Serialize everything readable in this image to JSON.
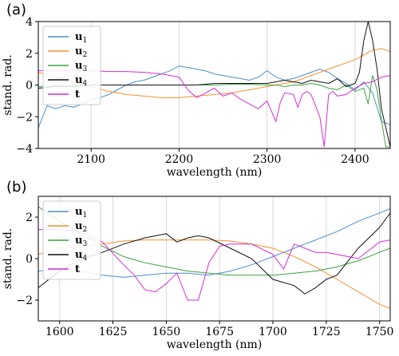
{
  "chart_data": [
    {
      "type": "line",
      "panel_label": "(a)",
      "xlabel": "wavelength (nm)",
      "ylabel": "stand. rad.",
      "xlim": [
        2040,
        2440
      ],
      "ylim": [
        -4,
        4
      ],
      "xticks": [
        2100,
        2200,
        2300,
        2400
      ],
      "yticks": [
        -4,
        -2,
        0,
        2,
        4
      ],
      "grid": true,
      "legend_position": "upper-left",
      "series": [
        {
          "name": "u",
          "sub": "1",
          "color": "#4c8fc7",
          "x": [
            2040,
            2050,
            2060,
            2070,
            2080,
            2090,
            2100,
            2110,
            2120,
            2130,
            2140,
            2150,
            2160,
            2170,
            2180,
            2190,
            2200,
            2210,
            2220,
            2230,
            2240,
            2250,
            2260,
            2270,
            2280,
            2290,
            2300,
            2310,
            2320,
            2330,
            2340,
            2350,
            2360,
            2370,
            2380,
            2390,
            2400,
            2410,
            2420,
            2430,
            2440
          ],
          "y": [
            -2.7,
            -1.3,
            -1.5,
            -1.3,
            -1.4,
            -1.2,
            -0.9,
            -0.8,
            -0.6,
            -0.3,
            0.0,
            0.2,
            0.3,
            0.5,
            0.7,
            0.9,
            1.2,
            1.1,
            1.0,
            0.9,
            0.7,
            0.6,
            0.5,
            0.4,
            0.3,
            0.5,
            0.9,
            0.5,
            0.3,
            0.4,
            0.6,
            0.8,
            1.0,
            0.8,
            0.4,
            0.1,
            -0.3,
            0.2,
            -0.5,
            -2.3,
            -2.5
          ]
        },
        {
          "name": "u",
          "sub": "2",
          "color": "#f5902d",
          "x": [
            2040,
            2060,
            2080,
            2100,
            2120,
            2140,
            2160,
            2180,
            2200,
            2220,
            2240,
            2260,
            2280,
            2300,
            2310,
            2320,
            2330,
            2340,
            2350,
            2360,
            2370,
            2380,
            2390,
            2400,
            2410,
            2420,
            2430,
            2440
          ],
          "y": [
            0.8,
            0.5,
            0.2,
            -0.1,
            -0.4,
            -0.6,
            -0.7,
            -0.8,
            -0.8,
            -0.7,
            -0.6,
            -0.5,
            -0.3,
            -0.1,
            0.0,
            0.1,
            0.2,
            0.4,
            0.6,
            0.8,
            1.0,
            1.2,
            1.4,
            1.6,
            1.9,
            2.2,
            2.3,
            2.1
          ]
        },
        {
          "name": "u",
          "sub": "3",
          "color": "#3ca141",
          "x": [
            2040,
            2060,
            2080,
            2100,
            2120,
            2140,
            2160,
            2180,
            2200,
            2220,
            2240,
            2260,
            2280,
            2300,
            2310,
            2320,
            2330,
            2340,
            2350,
            2360,
            2370,
            2380,
            2390,
            2400,
            2410,
            2415,
            2420,
            2425,
            2430,
            2435,
            2440
          ],
          "y": [
            -0.1,
            -0.05,
            0.0,
            0.0,
            0.0,
            0.0,
            0.0,
            0.0,
            0.0,
            0.0,
            0.0,
            0.05,
            0.05,
            0.0,
            0.0,
            -0.1,
            0.0,
            0.0,
            0.1,
            0.0,
            -0.2,
            -0.3,
            0.0,
            -0.4,
            -0.2,
            -1.2,
            0.6,
            -0.3,
            -2.2,
            -3.9,
            -3.9
          ]
        },
        {
          "name": "u",
          "sub": "4",
          "color": "#111111",
          "x": [
            2040,
            2060,
            2080,
            2100,
            2120,
            2140,
            2160,
            2180,
            2200,
            2220,
            2240,
            2260,
            2280,
            2300,
            2310,
            2320,
            2330,
            2340,
            2350,
            2360,
            2370,
            2380,
            2390,
            2400,
            2405,
            2410,
            2415,
            2420,
            2425,
            2430,
            2440
          ],
          "y": [
            -0.2,
            -0.1,
            -0.1,
            0.0,
            0.0,
            0.0,
            0.0,
            0.0,
            0.0,
            0.0,
            0.1,
            0.1,
            0.1,
            0.1,
            0.2,
            0.3,
            0.2,
            0.1,
            0.3,
            0.2,
            0.1,
            0.4,
            -0.1,
            0.1,
            0.8,
            2.8,
            4.0,
            2.8,
            1.0,
            -1.5,
            -3.9
          ]
        },
        {
          "name": "t",
          "sub": "",
          "color": "#d42fd4",
          "x": [
            2040,
            2060,
            2080,
            2100,
            2120,
            2140,
            2160,
            2180,
            2190,
            2200,
            2210,
            2220,
            2230,
            2240,
            2250,
            2260,
            2270,
            2280,
            2290,
            2300,
            2310,
            2315,
            2320,
            2330,
            2335,
            2340,
            2345,
            2350,
            2360,
            2365,
            2370,
            2375,
            2380,
            2390,
            2400,
            2410,
            2420,
            2430,
            2440
          ],
          "y": [
            0.9,
            0.9,
            0.9,
            0.9,
            0.85,
            0.85,
            0.8,
            0.7,
            0.6,
            0.5,
            -0.3,
            -0.8,
            -0.5,
            -0.2,
            -0.7,
            -0.5,
            -0.9,
            -1.2,
            -1.5,
            -1.0,
            -2.3,
            -1.1,
            -0.5,
            -0.6,
            -1.4,
            -0.6,
            -0.4,
            -0.6,
            -2.0,
            -3.9,
            -0.6,
            -0.4,
            -0.7,
            -0.6,
            -0.2,
            0.1,
            0.2,
            0.5,
            0.6
          ]
        }
      ]
    },
    {
      "type": "line",
      "panel_label": "(b)",
      "xlabel": "wavelength (nm)",
      "ylabel": "stand. rad.",
      "xlim": [
        1590,
        1755
      ],
      "ylim": [
        -3.0,
        3.0
      ],
      "xticks": [
        1600,
        1625,
        1650,
        1675,
        1700,
        1725,
        1750
      ],
      "yticks": [
        -2,
        0,
        2
      ],
      "grid": true,
      "legend_position": "upper-left",
      "series": [
        {
          "name": "u",
          "sub": "1",
          "color": "#4c8fc7",
          "x": [
            1590,
            1600,
            1610,
            1620,
            1630,
            1640,
            1650,
            1660,
            1670,
            1680,
            1690,
            1700,
            1710,
            1720,
            1730,
            1740,
            1750,
            1755
          ],
          "y": [
            -0.6,
            -0.5,
            -0.6,
            -0.8,
            -0.9,
            -0.8,
            -0.7,
            -0.7,
            -0.8,
            -0.6,
            -0.3,
            0.1,
            0.5,
            0.9,
            1.3,
            1.8,
            2.2,
            2.4
          ]
        },
        {
          "name": "u",
          "sub": "2",
          "color": "#f5902d",
          "x": [
            1590,
            1600,
            1610,
            1620,
            1630,
            1640,
            1650,
            1660,
            1670,
            1680,
            1690,
            1700,
            1710,
            1720,
            1730,
            1740,
            1750,
            1755
          ],
          "y": [
            0.2,
            0.5,
            0.6,
            0.7,
            0.85,
            0.9,
            0.9,
            0.9,
            0.9,
            0.85,
            0.7,
            0.5,
            0.1,
            -0.4,
            -1.0,
            -1.6,
            -2.2,
            -2.4
          ]
        },
        {
          "name": "u",
          "sub": "3",
          "color": "#3ca141",
          "x": [
            1590,
            1600,
            1610,
            1620,
            1630,
            1640,
            1650,
            1660,
            1670,
            1680,
            1690,
            1700,
            1710,
            1720,
            1730,
            1740,
            1750,
            1755
          ],
          "y": [
            2.5,
            1.8,
            1.2,
            0.6,
            0.1,
            -0.2,
            -0.4,
            -0.6,
            -0.7,
            -0.8,
            -0.8,
            -0.8,
            -0.7,
            -0.6,
            -0.4,
            -0.1,
            0.3,
            0.5
          ]
        },
        {
          "name": "u",
          "sub": "4",
          "color": "#111111",
          "x": [
            1590,
            1600,
            1610,
            1620,
            1630,
            1640,
            1645,
            1650,
            1655,
            1660,
            1665,
            1670,
            1680,
            1690,
            1700,
            1710,
            1715,
            1720,
            1725,
            1730,
            1740,
            1750,
            1755
          ],
          "y": [
            -1.4,
            -0.6,
            0.0,
            0.3,
            0.7,
            1.0,
            1.1,
            1.2,
            0.8,
            1.0,
            1.1,
            1.0,
            0.5,
            0.0,
            -1.0,
            -1.3,
            -1.7,
            -1.4,
            -1.0,
            -0.8,
            0.5,
            1.5,
            2.2
          ]
        },
        {
          "name": "t",
          "sub": "",
          "color": "#d42fd4",
          "x": [
            1590,
            1600,
            1610,
            1620,
            1630,
            1635,
            1640,
            1645,
            1650,
            1655,
            1660,
            1665,
            1670,
            1675,
            1680,
            1690,
            1700,
            1705,
            1710,
            1715,
            1720,
            1725,
            1730,
            1740,
            1750,
            1755
          ],
          "y": [
            1.4,
            1.4,
            1.3,
            0.8,
            -0.3,
            -0.8,
            -1.5,
            -1.6,
            -1.2,
            -0.7,
            -2.0,
            -2.0,
            -0.2,
            0.6,
            0.7,
            0.7,
            0.2,
            -0.5,
            0.7,
            0.5,
            0.3,
            0.3,
            0.2,
            0.0,
            0.8,
            0.9
          ]
        }
      ]
    }
  ]
}
